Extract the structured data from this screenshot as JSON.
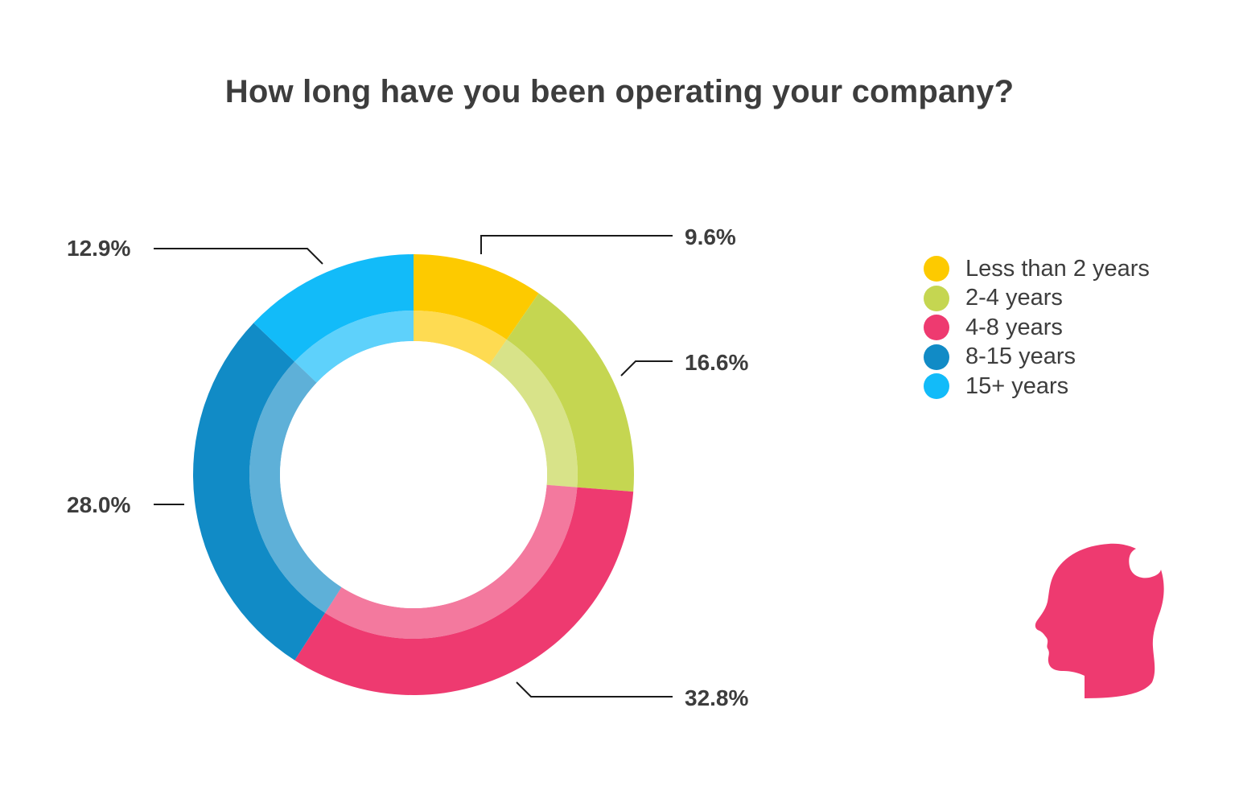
{
  "chart_data": {
    "type": "pie",
    "donut": true,
    "title": "How long have you been operating your company?",
    "categories": [
      "Less than 2 years",
      "2-4 years",
      "4-8 years",
      "8-15 years",
      "15+ years"
    ],
    "values": [
      9.6,
      16.6,
      32.8,
      28.0,
      12.9
    ],
    "value_labels": [
      "9.6%",
      "16.6%",
      "32.8%",
      "28.0%",
      "12.9%"
    ],
    "colors": [
      "#fdca00",
      "#c5d651",
      "#ee3a70",
      "#118bc6",
      "#12bbf9"
    ],
    "legend_position": "right"
  },
  "decoration": {
    "icon": "human-head-profile-icon",
    "color": "#ee3a70"
  }
}
